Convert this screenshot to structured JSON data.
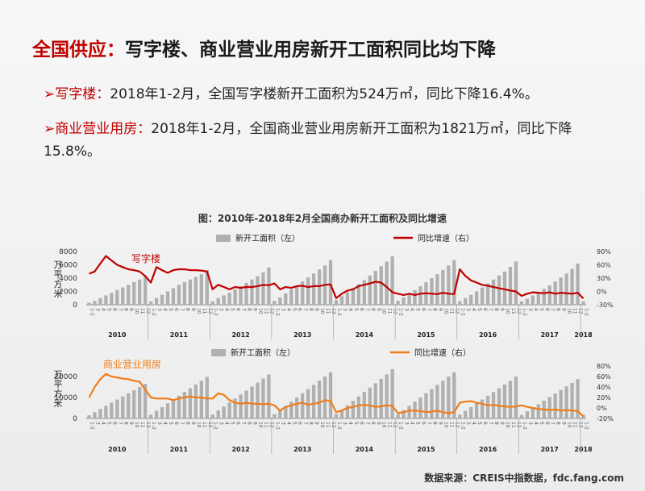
{
  "title": {
    "accent": "全国供应：",
    "rest": "写字楼、商业营业用房新开工面积同比均下降"
  },
  "bullets": [
    {
      "marker": "➢",
      "head": "写字楼：",
      "text": "2018年1-2月，全国写字楼新开工面积为524万㎡，同比下降16.4%。"
    },
    {
      "marker": "➢",
      "head": "商业营业用房：",
      "text": "2018年1-2月，全国商业营业用房新开工面积为1821万㎡，同比下降15.8%。"
    }
  ],
  "figure_title": "图：2010年-2018年2月全国商办新开工面积及同比增速",
  "source": "数据来源：CREIS中指数据，fdc.fang.com",
  "colors": {
    "bar": "#b0b0b0",
    "office_line": "#c00000",
    "retail_line": "#f07d1a",
    "accent": "#c00000"
  },
  "chart_data": [
    {
      "type": "bar+line",
      "annotation": "写字楼",
      "ylabel_left": "万平方米",
      "y_left_ticks": [
        "0",
        "2000",
        "4000",
        "6000",
        "8000"
      ],
      "y_left_range": [
        0,
        8000
      ],
      "y_right_ticks": [
        "-30%",
        "0%",
        "30%",
        "60%",
        "90%"
      ],
      "y_right_range": [
        -0.3,
        0.9
      ],
      "legend": [
        "新开工面积（左）",
        "同比增速（右）"
      ],
      "x_month_labels": [
        "1-2",
        "3",
        "4",
        "5",
        "6",
        "7",
        "8",
        "9",
        "10",
        "11",
        "12"
      ],
      "years": [
        "2010",
        "2011",
        "2012",
        "2013",
        "2014",
        "2015",
        "2016",
        "2017",
        "2018"
      ],
      "bars": [
        [
          300,
          600,
          1000,
          1400,
          1800,
          2200,
          2600,
          3000,
          3400,
          3800,
          4300
        ],
        [
          500,
          1000,
          1500,
          2000,
          2500,
          3000,
          3400,
          3800,
          4200,
          4600,
          5200
        ],
        [
          500,
          1000,
          1400,
          1800,
          2300,
          2800,
          3300,
          3800,
          4300,
          4900,
          5600
        ],
        [
          600,
          1100,
          1700,
          2300,
          2900,
          3500,
          4100,
          4700,
          5300,
          5900,
          6700
        ],
        [
          700,
          1300,
          1900,
          2500,
          3100,
          3700,
          4400,
          5100,
          5800,
          6500,
          7300
        ],
        [
          600,
          1100,
          1600,
          2200,
          2800,
          3400,
          4000,
          4600,
          5200,
          5900,
          6700
        ],
        [
          550,
          1000,
          1500,
          2000,
          2600,
          3200,
          3800,
          4400,
          5000,
          5700,
          6500
        ],
        [
          500,
          900,
          1400,
          1900,
          2400,
          2900,
          3500,
          4100,
          4700,
          5400,
          6200
        ],
        [
          520
        ]
      ],
      "line": [
        [
          0.4,
          0.45,
          0.63,
          0.8,
          0.7,
          0.6,
          0.55,
          0.5,
          0.48,
          0.45,
          0.35
        ],
        [
          0.2,
          0.55,
          0.48,
          0.42,
          0.48,
          0.5,
          0.5,
          0.48,
          0.48,
          0.47,
          0.45
        ],
        [
          0.05,
          0.15,
          0.1,
          0.05,
          0.1,
          0.08,
          0.1,
          0.1,
          0.12,
          0.15,
          0.14
        ],
        [
          0.18,
          0.05,
          0.1,
          0.08,
          0.12,
          0.13,
          0.1,
          0.12,
          0.12,
          0.15,
          0.16
        ],
        [
          -0.15,
          -0.05,
          0.02,
          0.05,
          0.12,
          0.15,
          0.18,
          0.22,
          0.2,
          0.1,
          -0.02
        ],
        [
          -0.05,
          -0.08,
          -0.05,
          -0.08,
          -0.05,
          -0.04,
          -0.05,
          -0.06,
          -0.03,
          -0.05,
          -0.06
        ],
        [
          0.5,
          0.35,
          0.25,
          0.2,
          0.15,
          0.13,
          0.1,
          0.07,
          0.05,
          0.02,
          0.0
        ],
        [
          -0.1,
          -0.05,
          -0.02,
          -0.03,
          -0.04,
          -0.02,
          -0.05,
          -0.03,
          -0.04,
          -0.05,
          -0.03
        ],
        [
          -0.16
        ]
      ]
    },
    {
      "type": "bar+line",
      "annotation": "商业营业用房",
      "ylabel_left": "万平方米",
      "y_left_ticks": [
        "0",
        "10000",
        "20000"
      ],
      "y_left_range": [
        0,
        25000
      ],
      "y_right_ticks": [
        "-20%",
        "0%",
        "20%",
        "40%",
        "60%",
        "80%"
      ],
      "y_right_range": [
        -0.2,
        0.8
      ],
      "legend": [
        "新开工面积（左）",
        "同比增速（右）"
      ],
      "x_month_labels": [
        "1-2",
        "3",
        "4",
        "5",
        "6",
        "7",
        "8",
        "9",
        "10",
        "11",
        "12"
      ],
      "years": [
        "2010",
        "2011",
        "2012",
        "2013",
        "2014",
        "2015",
        "2016",
        "2017",
        "2018"
      ],
      "bars": [
        [
          1500,
          3000,
          4500,
          6000,
          7500,
          9000,
          10500,
          12000,
          13500,
          15000,
          16500
        ],
        [
          1800,
          3600,
          5400,
          7200,
          9000,
          10800,
          12600,
          14400,
          16200,
          18000,
          19800
        ],
        [
          1900,
          3800,
          5700,
          7600,
          9500,
          11400,
          13300,
          15200,
          17100,
          19000,
          21000
        ],
        [
          2000,
          4000,
          6000,
          8000,
          10000,
          12000,
          14000,
          16000,
          18000,
          20000,
          22000
        ],
        [
          2100,
          4200,
          6300,
          8400,
          10500,
          12600,
          14700,
          16800,
          18900,
          21000,
          23500
        ],
        [
          2000,
          4000,
          6000,
          8000,
          10000,
          12000,
          14000,
          16000,
          18000,
          20000,
          22000
        ],
        [
          1800,
          3600,
          5400,
          7200,
          9000,
          10800,
          12600,
          14400,
          16200,
          18000,
          20000
        ],
        [
          1700,
          3400,
          5100,
          6800,
          8500,
          10200,
          11900,
          13600,
          15300,
          17000,
          18800
        ],
        [
          1821
        ]
      ],
      "line": [
        [
          0.2,
          0.4,
          0.55,
          0.65,
          0.6,
          0.58,
          0.56,
          0.55,
          0.52,
          0.5,
          0.35
        ],
        [
          0.2,
          0.18,
          0.18,
          0.18,
          0.15,
          0.18,
          0.2,
          0.22,
          0.2,
          0.2,
          0.18
        ],
        [
          0.18,
          0.28,
          0.25,
          0.15,
          0.1,
          0.08,
          0.1,
          0.08,
          0.08,
          0.07,
          0.08
        ],
        [
          0.05,
          -0.05,
          0.02,
          0.05,
          0.08,
          0.1,
          0.06,
          0.08,
          0.1,
          0.15,
          0.13
        ],
        [
          -0.08,
          -0.05,
          0.0,
          0.02,
          0.05,
          0.06,
          0.05,
          0.02,
          0.03,
          0.05,
          0.04
        ],
        [
          -0.1,
          -0.08,
          -0.05,
          -0.05,
          -0.06,
          -0.08,
          -0.07,
          -0.05,
          -0.08,
          -0.1,
          -0.08
        ],
        [
          0.1,
          0.12,
          0.13,
          0.1,
          0.08,
          0.05,
          0.06,
          0.04,
          0.03,
          0.02,
          0.03
        ],
        [
          0.05,
          0.02,
          0.0,
          -0.02,
          -0.03,
          -0.04,
          -0.03,
          -0.05,
          -0.04,
          -0.05,
          -0.06
        ],
        [
          -0.16
        ]
      ]
    }
  ]
}
